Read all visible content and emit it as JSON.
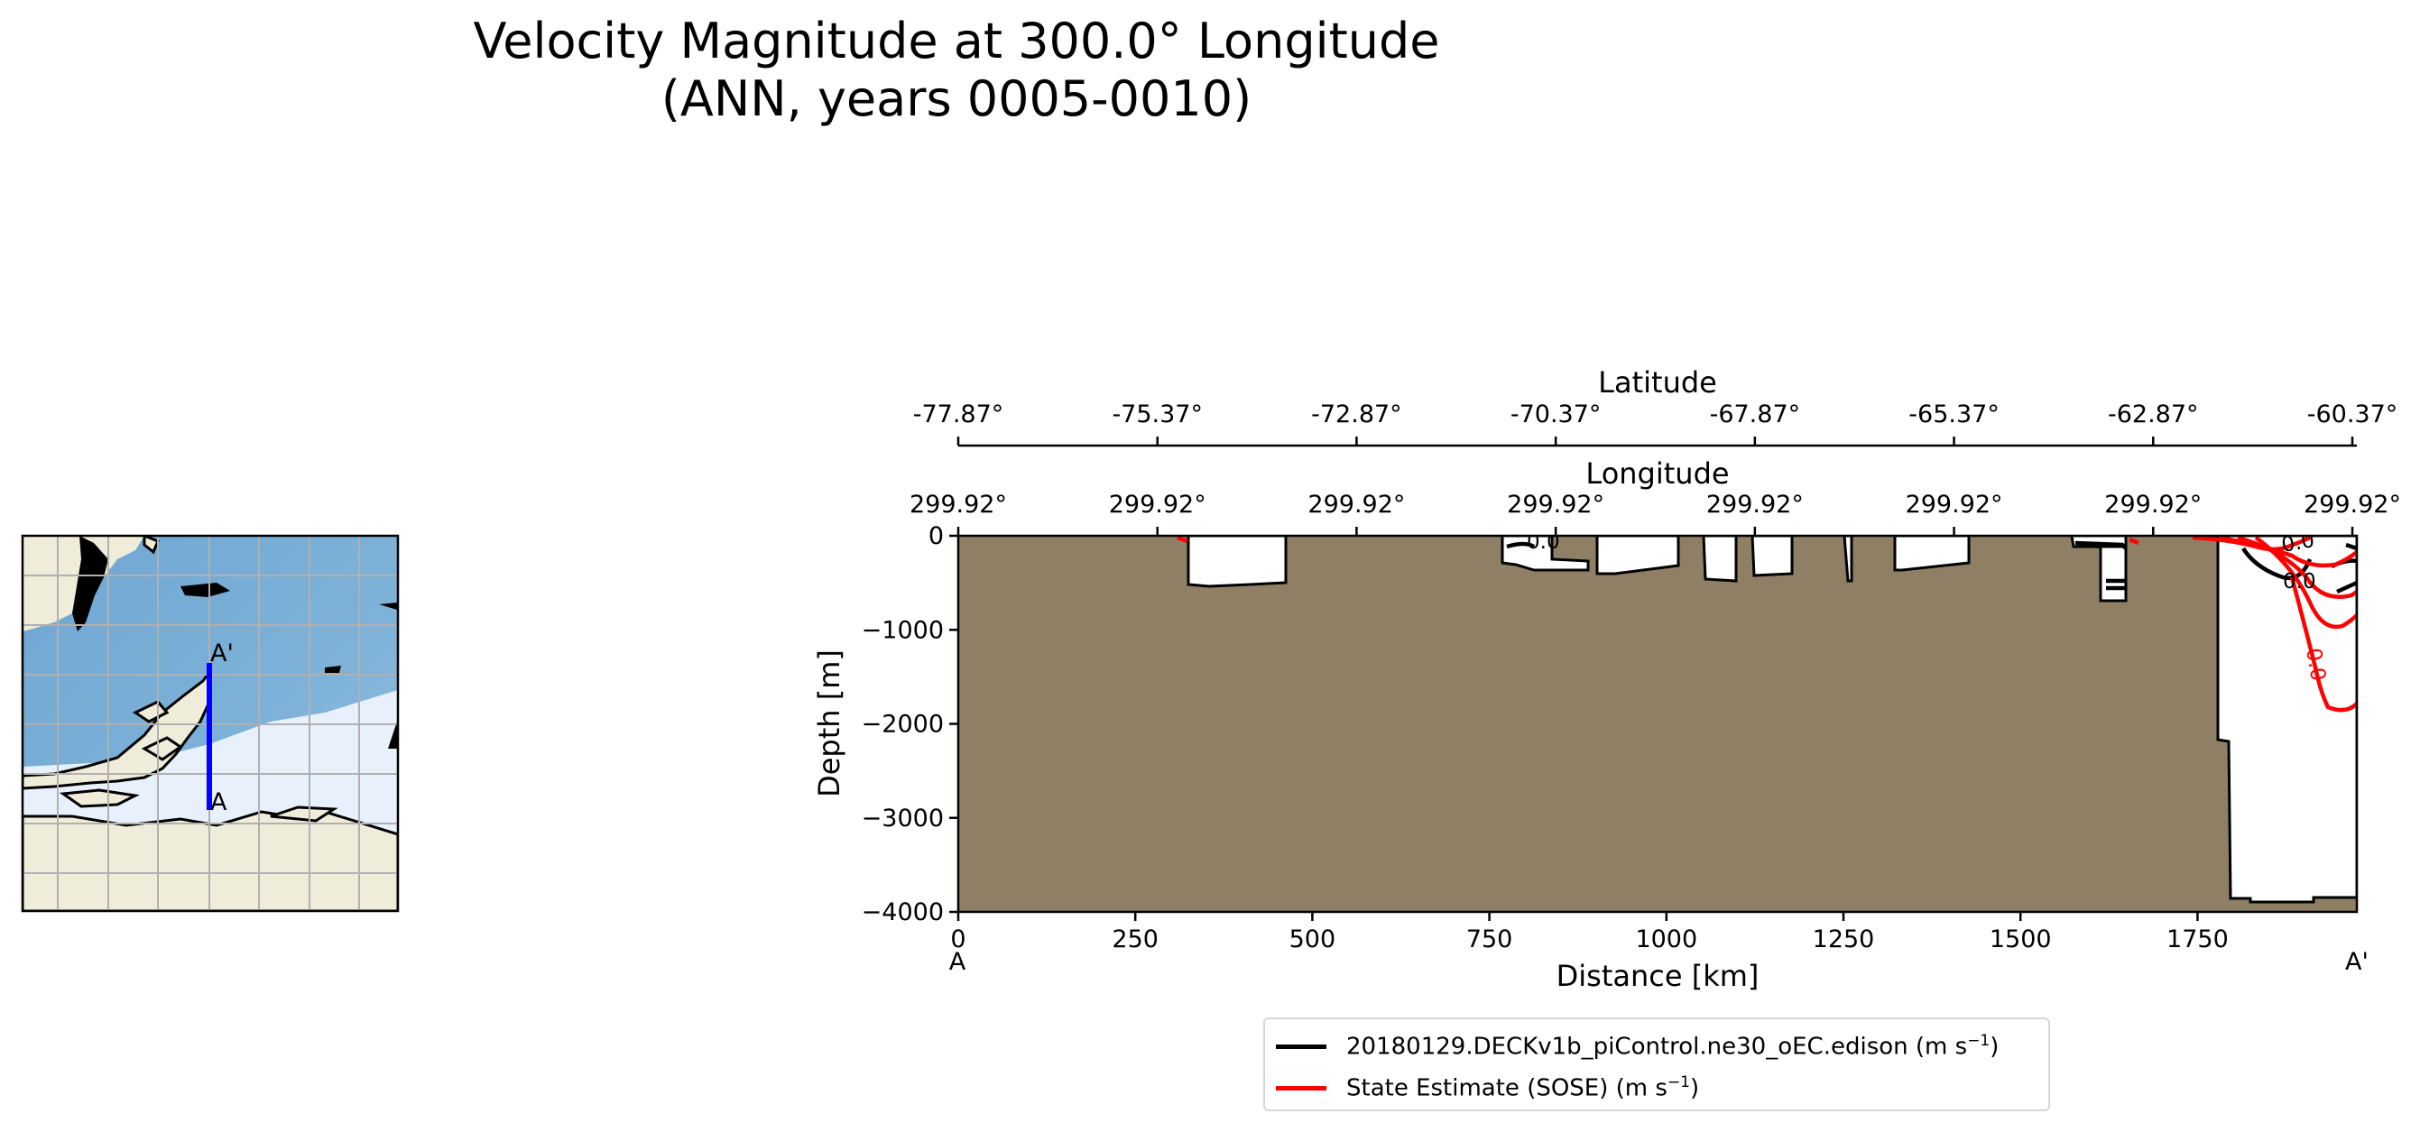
{
  "title_line1": "Velocity Magnitude at 300.0° Longitude",
  "title_line2": "(ANN, years 0005-0010)",
  "chart_data": {
    "type": "contour",
    "xlabel": "Distance [km]",
    "ylabel": "Depth [m]",
    "xlim": [
      0,
      1975
    ],
    "ylim": [
      -4000,
      0
    ],
    "x_ticks": [
      "0",
      "250",
      "500",
      "750",
      "1000",
      "1250",
      "1500",
      "1750"
    ],
    "y_ticks": [
      "0",
      "−1000",
      "−2000",
      "−3000",
      "−4000"
    ],
    "endpoint_left": "A",
    "endpoint_right": "A'",
    "lat_axis": {
      "label": "Latitude",
      "ticks": [
        "-77.87°",
        "-75.37°",
        "-72.87°",
        "-70.37°",
        "-67.87°",
        "-65.37°",
        "-62.87°",
        "-60.37°"
      ]
    },
    "lon_axis": {
      "label": "Longitude",
      "ticks": [
        "299.92°",
        "299.92°",
        "299.92°",
        "299.92°",
        "299.92°",
        "299.92°",
        "299.92°",
        "299.92°"
      ]
    },
    "contour_labels": [
      "0.0",
      "0.0",
      "0.0",
      "0.0"
    ],
    "series": [
      {
        "name": "20180129.DECKv1b_piControl.ne30_oEC.edison",
        "unit_prefix": "(m s",
        "unit_exp": "−1",
        "unit_suffix": ")",
        "color": "#000000"
      },
      {
        "name": "State Estimate (SOSE)",
        "unit_prefix": "(m s",
        "unit_exp": "−1",
        "unit_suffix": ")",
        "color": "#ff0000"
      }
    ],
    "colors": {
      "land": "#8e7f65",
      "ocean": "#ffffff"
    },
    "legend_position": "bottom-center"
  },
  "inset_map": {
    "label_start": "A",
    "label_end": "A'",
    "colors": {
      "ocean": "#79aed6",
      "land": "#efedd9",
      "ice": "#e8f1fb",
      "transect": "#0000ff"
    }
  }
}
